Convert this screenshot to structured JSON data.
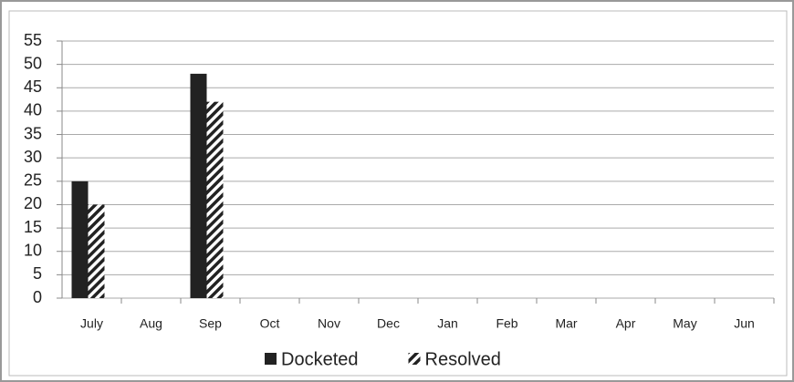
{
  "chart_data": {
    "type": "bar",
    "categories": [
      "July",
      "Aug",
      "Sep",
      "Oct",
      "Nov",
      "Dec",
      "Jan",
      "Feb",
      "Mar",
      "Apr",
      "May",
      "Jun"
    ],
    "series": [
      {
        "name": "Docketed",
        "color": "#222222",
        "values": [
          25,
          null,
          48,
          null,
          null,
          null,
          null,
          null,
          null,
          null,
          null,
          null
        ]
      },
      {
        "name": "Resolved",
        "color": "#222222",
        "values": [
          20,
          null,
          42,
          null,
          null,
          null,
          null,
          null,
          null,
          null,
          null,
          null
        ]
      }
    ],
    "ylim": [
      0,
      55
    ],
    "yticks": [
      0,
      5,
      10,
      15,
      20,
      25,
      30,
      35,
      40,
      45,
      50,
      55
    ],
    "grid": true,
    "legend": "bottom"
  }
}
